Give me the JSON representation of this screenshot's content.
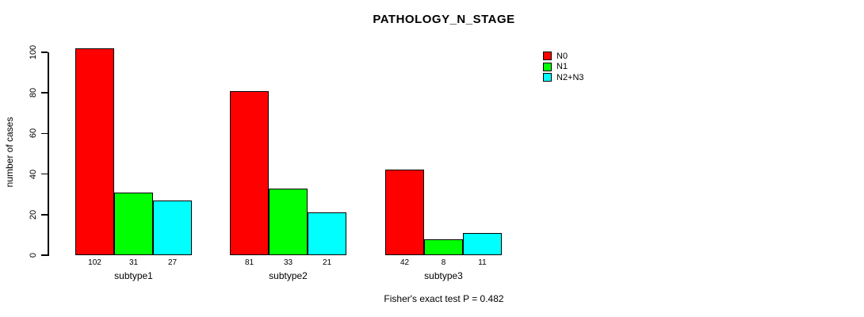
{
  "title": "PATHOLOGY_N_STAGE",
  "caption": "Fisher's exact test P = 0.482",
  "chart_data": {
    "type": "bar",
    "title": "PATHOLOGY_N_STAGE",
    "categories": [
      "subtype1",
      "subtype2",
      "subtype3"
    ],
    "series": [
      {
        "name": "N0",
        "color": "#ff0000",
        "values": [
          102,
          81,
          42
        ]
      },
      {
        "name": "N1",
        "color": "#00ff00",
        "values": [
          31,
          33,
          8
        ]
      },
      {
        "name": "N2+N3",
        "color": "#00ffff",
        "values": [
          27,
          21,
          11
        ]
      }
    ],
    "xlabel": "",
    "ylabel": "number of cases",
    "ylim": [
      0,
      100
    ],
    "yticks": [
      0,
      20,
      40,
      60,
      80,
      100
    ],
    "grid": false,
    "legend_position": "right",
    "bar_value_labels": true,
    "annotation": "Fisher's exact test P = 0.482"
  }
}
